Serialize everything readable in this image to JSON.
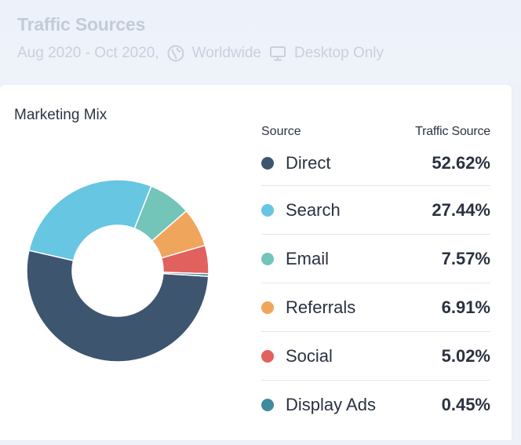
{
  "header": {
    "title": "Traffic Sources",
    "date_range": "Aug 2020 - Oct 2020,",
    "region": "Worldwide",
    "device": "Desktop Only",
    "region_icon": "globe-icon",
    "device_icon": "monitor-icon"
  },
  "card": {
    "title": "Marketing Mix"
  },
  "legend": {
    "col_source": "Source",
    "col_traffic": "Traffic Source",
    "rows": [
      {
        "name": "Direct",
        "value": "52.62%",
        "color": "#3e5570"
      },
      {
        "name": "Search",
        "value": "27.44%",
        "color": "#67c6e2"
      },
      {
        "name": "Email",
        "value": "7.57%",
        "color": "#73c4b9"
      },
      {
        "name": "Referrals",
        "value": "6.91%",
        "color": "#f0a55c"
      },
      {
        "name": "Social",
        "value": "5.02%",
        "color": "#e0615d"
      },
      {
        "name": "Display Ads",
        "value": "0.45%",
        "color": "#3f8a9d"
      }
    ]
  },
  "chart_data": {
    "type": "pie",
    "title": "Marketing Mix",
    "categories": [
      "Direct",
      "Search",
      "Email",
      "Referrals",
      "Social",
      "Display Ads"
    ],
    "values": [
      52.62,
      27.44,
      7.57,
      6.91,
      5.02,
      0.45
    ],
    "colors": [
      "#3e5570",
      "#67c6e2",
      "#73c4b9",
      "#f0a55c",
      "#e0615d",
      "#3f8a9d"
    ],
    "unit": "%",
    "hole": "donut",
    "legend": "right"
  }
}
